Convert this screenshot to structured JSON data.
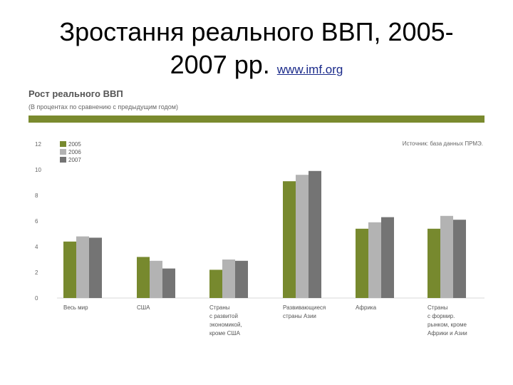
{
  "slide": {
    "title_line1": "Зростання реального ВВП, 2005-",
    "title_line2": "2007 рр.",
    "link": "www.imf.org"
  },
  "chart_data": {
    "type": "bar",
    "title": "Рост реального ВВП",
    "subtitle": "(В процентах по сравнению с предыдущим годом)",
    "source": "Источник: база данных ПРМЭ.",
    "categories": [
      [
        "Весь мир"
      ],
      [
        "США"
      ],
      [
        "Страны",
        "с развитой",
        "экономикой,",
        "кроме США"
      ],
      [
        "Развивающиеся",
        "страны Азии"
      ],
      [
        "Африка"
      ],
      [
        "Страны",
        "с формир.",
        "рынком, кроме",
        "Африки и Азии"
      ]
    ],
    "series": [
      {
        "name": "2005",
        "values": [
          4.4,
          3.2,
          2.2,
          9.1,
          5.4,
          5.4
        ]
      },
      {
        "name": "2006",
        "values": [
          4.8,
          2.9,
          3.0,
          9.6,
          5.9,
          6.4
        ]
      },
      {
        "name": "2007",
        "values": [
          4.7,
          2.3,
          2.9,
          9.9,
          6.3,
          6.1
        ]
      }
    ],
    "yticks": [
      0,
      2,
      4,
      6,
      8,
      10,
      12
    ],
    "ylim": [
      0,
      12
    ],
    "legend_position": "top-left",
    "grid": false,
    "colors": [
      "#77892e",
      "#b3b3b3",
      "#747474"
    ]
  }
}
